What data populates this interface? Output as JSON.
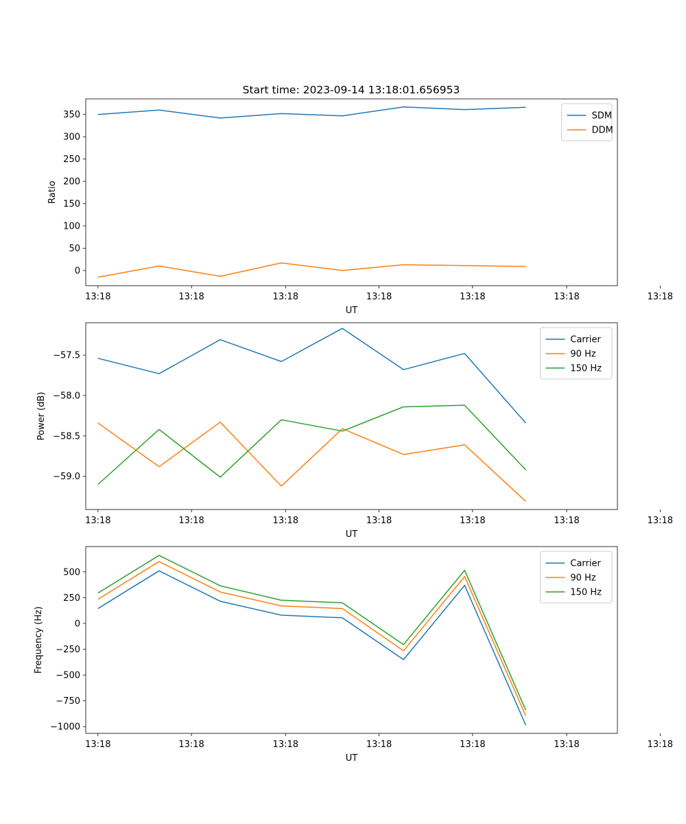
{
  "figure_title": "Start time: 2023-09-14 13:18:01.656953",
  "colors": {
    "blue": "#1f77b4",
    "orange": "#ff7f0e",
    "green": "#2ca02c"
  },
  "chart_data": [
    {
      "type": "line",
      "title": "Start time: 2023-09-14 13:18:01.656953",
      "xlabel": "UT",
      "ylabel": "Ratio",
      "x": [
        1,
        2,
        3,
        4,
        5,
        6,
        7,
        8
      ],
      "xlim": [
        0.8,
        9.5
      ],
      "xticks": [
        1,
        2.53,
        4.07,
        5.6,
        7.13,
        8.67,
        10.2
      ],
      "xtick_labels": [
        "13:18",
        "13:18",
        "13:18",
        "13:18",
        "13:18",
        "13:18",
        "13:18"
      ],
      "ylim": [
        -34,
        385
      ],
      "yticks": [
        0,
        50,
        100,
        150,
        200,
        250,
        300,
        350
      ],
      "ytick_labels": [
        "0",
        "50",
        "100",
        "150",
        "200",
        "250",
        "300",
        "350"
      ],
      "legend": "top-right",
      "series": [
        {
          "name": "SDM",
          "color": "#1f77b4",
          "values": [
            350,
            360,
            342,
            352,
            347,
            367,
            361,
            366
          ]
        },
        {
          "name": "DDM",
          "color": "#ff7f0e",
          "values": [
            -15,
            10,
            -13,
            17,
            0,
            13,
            11,
            9
          ]
        }
      ]
    },
    {
      "type": "line",
      "title": "",
      "xlabel": "UT",
      "ylabel": "Power (dB)",
      "x": [
        1,
        2,
        3,
        4,
        5,
        6,
        7,
        8
      ],
      "xlim": [
        0.8,
        9.5
      ],
      "xticks": [
        1,
        2.53,
        4.07,
        5.6,
        7.13,
        8.67,
        10.2
      ],
      "xtick_labels": [
        "13:18",
        "13:18",
        "13:18",
        "13:18",
        "13:18",
        "13:18",
        "13:18"
      ],
      "ylim": [
        -59.41,
        -57.1
      ],
      "yticks": [
        -59.0,
        -58.5,
        -58.0,
        -57.5
      ],
      "ytick_labels": [
        "−59.0",
        "−58.5",
        "−58.0",
        "−57.5"
      ],
      "legend": "top-right",
      "series": [
        {
          "name": "Carrier",
          "color": "#1f77b4",
          "values": [
            -57.54,
            -57.73,
            -57.31,
            -57.58,
            -57.17,
            -57.68,
            -57.48,
            -58.34
          ]
        },
        {
          "name": "90 Hz",
          "color": "#ff7f0e",
          "values": [
            -58.34,
            -58.88,
            -58.33,
            -59.12,
            -58.41,
            -58.73,
            -58.61,
            -59.31
          ]
        },
        {
          "name": "150 Hz",
          "color": "#2ca02c",
          "values": [
            -59.1,
            -58.42,
            -59.01,
            -58.3,
            -58.44,
            -58.14,
            -58.12,
            -58.92
          ]
        }
      ]
    },
    {
      "type": "line",
      "title": "",
      "xlabel": "UT",
      "ylabel": "Frequency (Hz)",
      "x": [
        1,
        2,
        3,
        4,
        5,
        6,
        7,
        8
      ],
      "xlim": [
        0.8,
        9.5
      ],
      "xticks": [
        1,
        2.53,
        4.07,
        5.6,
        7.13,
        8.67,
        10.2
      ],
      "xtick_labels": [
        "13:18",
        "13:18",
        "13:18",
        "13:18",
        "13:18",
        "13:18",
        "13:18"
      ],
      "ylim": [
        -1065,
        745
      ],
      "yticks": [
        -1000,
        -750,
        -500,
        -250,
        0,
        250,
        500
      ],
      "ytick_labels": [
        "−1000",
        "−750",
        "−500",
        "−250",
        "0",
        "250",
        "500"
      ],
      "legend": "top-right",
      "series": [
        {
          "name": "Carrier",
          "color": "#1f77b4",
          "values": [
            145,
            510,
            215,
            80,
            55,
            -350,
            370,
            -985
          ]
        },
        {
          "name": "90 Hz",
          "color": "#ff7f0e",
          "values": [
            235,
            600,
            305,
            170,
            145,
            -265,
            455,
            -895
          ]
        },
        {
          "name": "150 Hz",
          "color": "#2ca02c",
          "values": [
            295,
            660,
            365,
            225,
            200,
            -205,
            515,
            -840
          ]
        }
      ]
    }
  ]
}
